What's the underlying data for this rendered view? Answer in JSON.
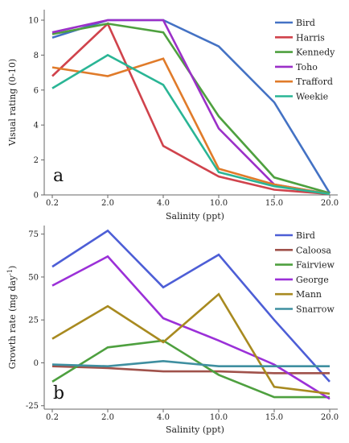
{
  "chart_data": [
    {
      "type": "line",
      "panel_label": "a",
      "xlabel": "Salinity (ppt)",
      "ylabel": "Visual rating (0-10)",
      "categories": [
        "0.2",
        "2.0",
        "4.0",
        "10.0",
        "15.0",
        "20.0"
      ],
      "ylim": [
        0,
        10.6
      ],
      "yticks": [
        "0",
        "2",
        "4",
        "6",
        "8",
        "10"
      ],
      "grid": false,
      "legend_position": "top-right",
      "series": [
        {
          "name": "Bird",
          "color": "#4472c4",
          "values": [
            9.0,
            10.0,
            10.0,
            8.5,
            5.3,
            0.1
          ]
        },
        {
          "name": "Harris",
          "color": "#d0434c",
          "values": [
            6.8,
            9.8,
            2.8,
            1.05,
            0.3,
            0.05
          ]
        },
        {
          "name": "Kennedy",
          "color": "#4ea03f",
          "values": [
            9.2,
            9.8,
            9.3,
            4.5,
            1.0,
            0.1
          ]
        },
        {
          "name": "Toho",
          "color": "#9b30c8",
          "values": [
            9.3,
            10.0,
            10.0,
            3.8,
            0.6,
            0.05
          ]
        },
        {
          "name": "Trafford",
          "color": "#e07b2a",
          "values": [
            7.3,
            6.8,
            7.8,
            1.5,
            0.6,
            0.05
          ]
        },
        {
          "name": "Weekie",
          "color": "#2ab595",
          "values": [
            6.1,
            8.0,
            6.3,
            1.3,
            0.5,
            0.05
          ]
        }
      ]
    },
    {
      "type": "line",
      "panel_label": "b",
      "xlabel": "Salinity (ppt)",
      "ylabel": "Growth rate (mg day",
      "ylabel_superscript": "-1",
      "ylabel_suffix": ")",
      "categories": [
        "0.2",
        "2.0",
        "4.0",
        "10.0",
        "15.0",
        "20.0"
      ],
      "ylim": [
        -27,
        80
      ],
      "yticks": [
        "-25",
        "0",
        "25",
        "50",
        "75"
      ],
      "grid": false,
      "legend_position": "top-right",
      "series": [
        {
          "name": "Bird",
          "color": "#4d5ed6",
          "values": [
            56,
            77,
            44,
            63,
            25,
            -11
          ]
        },
        {
          "name": "Caloosa",
          "color": "#a0524b",
          "values": [
            -2,
            -3,
            -5,
            -5,
            -6,
            -6
          ]
        },
        {
          "name": "Fairview",
          "color": "#4ea03f",
          "values": [
            -11,
            9,
            13,
            -7,
            -20,
            -20
          ]
        },
        {
          "name": "George",
          "color": "#9b30d8",
          "values": [
            45,
            62,
            26,
            13,
            -1,
            -21
          ]
        },
        {
          "name": "Mann",
          "color": "#a88a20",
          "values": [
            14,
            33,
            12,
            40,
            -14,
            -18
          ]
        },
        {
          "name": "Snarrow",
          "color": "#3f8fa0",
          "values": [
            -1,
            -2,
            1,
            -2,
            -2,
            -2
          ]
        }
      ]
    }
  ]
}
